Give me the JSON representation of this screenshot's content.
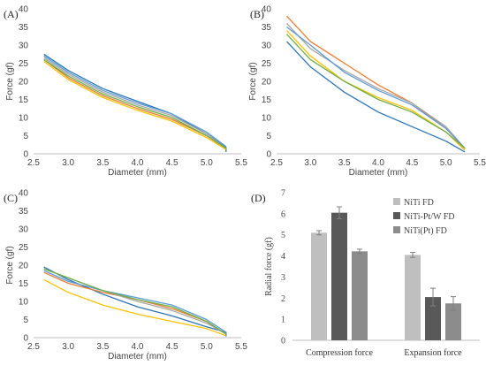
{
  "chart_data": [
    {
      "id": "A",
      "type": "line",
      "panel_label": "(A)",
      "xlabel": "Diameter (mm)",
      "ylabel": "Force (gf)",
      "xlim": [
        2.5,
        5.5
      ],
      "ylim": [
        0,
        40
      ],
      "xticks": [
        "2.5",
        "3.0",
        "3.5",
        "4.0",
        "4.5",
        "5.0",
        "5.5"
      ],
      "yticks": [
        "0",
        "5",
        "10",
        "15",
        "20",
        "25",
        "30",
        "35",
        "40"
      ],
      "series": [
        {
          "color": "#2e75b6",
          "x": [
            2.65,
            3.0,
            3.5,
            4.0,
            4.5,
            5.0,
            5.28,
            5.28
          ],
          "y": [
            27.5,
            23.0,
            18.0,
            14.5,
            11.0,
            5.5,
            1.8,
            0.5
          ]
        },
        {
          "color": "#ed7d31",
          "x": [
            2.65,
            3.0,
            3.5,
            4.0,
            4.5,
            5.0,
            5.28
          ],
          "y": [
            26.0,
            21.0,
            16.0,
            12.5,
            9.5,
            5.0,
            1.5
          ]
        },
        {
          "color": "#a5a5a5",
          "x": [
            2.65,
            3.0,
            3.5,
            4.0,
            4.5,
            5.0,
            5.28
          ],
          "y": [
            26.5,
            22.0,
            17.0,
            13.5,
            10.5,
            5.5,
            1.5
          ]
        },
        {
          "color": "#ffc000",
          "x": [
            2.65,
            3.0,
            3.5,
            4.0,
            4.5,
            5.0,
            5.28
          ],
          "y": [
            25.5,
            20.5,
            15.5,
            12.0,
            9.0,
            4.5,
            1.2
          ]
        },
        {
          "color": "#5b9bd5",
          "x": [
            2.65,
            3.0,
            3.5,
            4.0,
            4.5,
            5.0,
            5.28
          ],
          "y": [
            27.0,
            22.5,
            17.5,
            14.0,
            11.0,
            6.0,
            2.0
          ]
        },
        {
          "color": "#70ad47",
          "x": [
            2.65,
            3.0,
            3.5,
            4.0,
            4.5,
            5.0,
            5.28
          ],
          "y": [
            26.0,
            21.5,
            16.5,
            13.0,
            10.0,
            5.0,
            1.5
          ]
        }
      ]
    },
    {
      "id": "B",
      "type": "line",
      "panel_label": "(B)",
      "xlabel": "Diameter (mm)",
      "ylabel": "Force (gf)",
      "xlim": [
        2.5,
        5.5
      ],
      "ylim": [
        0,
        40
      ],
      "xticks": [
        "2.5",
        "3.0",
        "3.5",
        "4.0",
        "4.5",
        "5.0",
        "5.5"
      ],
      "yticks": [
        "0",
        "5",
        "10",
        "15",
        "20",
        "25",
        "30",
        "35",
        "40"
      ],
      "series": [
        {
          "color": "#2e75b6",
          "x": [
            2.65,
            3.0,
            3.5,
            4.0,
            4.5,
            5.0,
            5.28
          ],
          "y": [
            31.0,
            24.0,
            17.0,
            11.5,
            7.5,
            3.5,
            0.5
          ]
        },
        {
          "color": "#ed7d31",
          "x": [
            2.65,
            2.75,
            3.0,
            3.5,
            4.0,
            4.5,
            5.0,
            5.28
          ],
          "y": [
            38.0,
            36.0,
            31.0,
            25.0,
            19.0,
            14.0,
            7.0,
            1.5
          ]
        },
        {
          "color": "#a5a5a5",
          "x": [
            2.65,
            3.0,
            3.5,
            4.0,
            4.5,
            5.0,
            5.28
          ],
          "y": [
            36.0,
            29.0,
            23.0,
            18.0,
            14.0,
            7.5,
            1.5
          ]
        },
        {
          "color": "#ffc000",
          "x": [
            2.65,
            3.0,
            3.5,
            4.0,
            4.5,
            5.0,
            5.28
          ],
          "y": [
            34.0,
            27.0,
            20.0,
            15.5,
            12.0,
            6.0,
            1.0
          ]
        },
        {
          "color": "#5b9bd5",
          "x": [
            2.65,
            3.0,
            3.5,
            4.0,
            4.5,
            5.0,
            5.28
          ],
          "y": [
            35.0,
            30.0,
            22.5,
            17.5,
            13.5,
            7.0,
            1.5
          ]
        },
        {
          "color": "#70ad47",
          "x": [
            2.65,
            3.0,
            3.5,
            4.0,
            4.5,
            5.0,
            5.28
          ],
          "y": [
            33.0,
            26.0,
            20.0,
            15.0,
            11.5,
            6.0,
            1.5
          ]
        }
      ]
    },
    {
      "id": "C",
      "type": "line",
      "panel_label": "(C)",
      "xlabel": "Diameter (mm)",
      "ylabel": "Force (gf)",
      "xlim": [
        2.5,
        5.5
      ],
      "ylim": [
        0,
        40
      ],
      "xticks": [
        "2.5",
        "3.0",
        "3.5",
        "4.0",
        "4.5",
        "5.0",
        "5.5"
      ],
      "yticks": [
        "0",
        "5",
        "10",
        "15",
        "20",
        "25",
        "30",
        "35",
        "40"
      ],
      "series": [
        {
          "color": "#2e75b6",
          "x": [
            2.65,
            3.0,
            3.5,
            4.0,
            4.5,
            5.0,
            5.28,
            5.28
          ],
          "y": [
            19.5,
            16.0,
            12.0,
            8.5,
            6.0,
            3.0,
            1.5,
            0.3
          ]
        },
        {
          "color": "#ed7d31",
          "x": [
            2.65,
            3.0,
            3.5,
            4.0,
            4.5,
            5.0,
            5.28
          ],
          "y": [
            18.0,
            15.0,
            12.5,
            10.5,
            8.0,
            4.5,
            1.0
          ]
        },
        {
          "color": "#a5a5a5",
          "x": [
            2.65,
            3.0,
            3.5,
            4.0,
            4.5,
            5.0,
            5.28
          ],
          "y": [
            19.0,
            16.5,
            13.0,
            10.0,
            7.5,
            4.0,
            1.0
          ]
        },
        {
          "color": "#ffc000",
          "x": [
            2.65,
            3.0,
            3.5,
            4.0,
            4.5,
            5.0,
            5.28
          ],
          "y": [
            16.0,
            12.5,
            9.0,
            6.5,
            4.5,
            2.5,
            0.5
          ]
        },
        {
          "color": "#5b9bd5",
          "x": [
            2.65,
            3.0,
            3.5,
            4.0,
            4.5,
            5.0,
            5.28
          ],
          "y": [
            18.5,
            15.5,
            13.0,
            11.0,
            9.0,
            5.0,
            1.5
          ]
        },
        {
          "color": "#70ad47",
          "x": [
            2.65,
            3.0,
            3.5,
            4.0,
            4.5,
            5.0,
            5.28
          ],
          "y": [
            19.0,
            16.5,
            13.0,
            10.5,
            8.5,
            4.5,
            1.0
          ]
        }
      ]
    },
    {
      "id": "D",
      "type": "bar",
      "panel_label": "(D)",
      "ylabel": "Radial force (gf)",
      "ylim": [
        0,
        7
      ],
      "yticks": [
        "0",
        "1",
        "2",
        "3",
        "4",
        "5",
        "6",
        "7"
      ],
      "categories": [
        "Compression force",
        "Expansion force"
      ],
      "legend_position": "top-right",
      "series": [
        {
          "name": "NiTi FD",
          "color": "#bfbfbf",
          "values": [
            5.1,
            4.05
          ],
          "errors": [
            0.1,
            0.12
          ]
        },
        {
          "name": "NiTi-Pt/W FD",
          "color": "#595959",
          "values": [
            6.05,
            2.05
          ],
          "errors": [
            0.28,
            0.42
          ]
        },
        {
          "name": "NiTi(Pt) FD",
          "color": "#8c8c8c",
          "values": [
            4.22,
            1.75
          ],
          "errors": [
            0.1,
            0.32
          ]
        }
      ]
    }
  ]
}
